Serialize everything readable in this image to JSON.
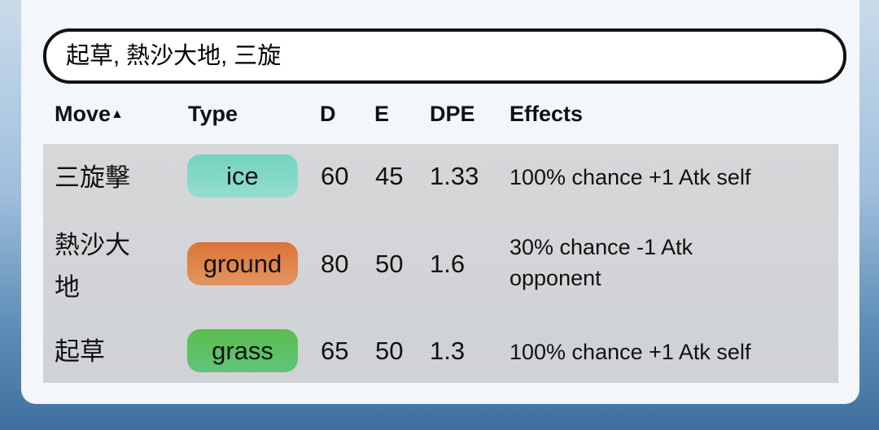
{
  "search": {
    "value": "起草, 熱沙大地, 三旋"
  },
  "columns": {
    "move": "Move",
    "sort_indicator": "▲",
    "type": "Type",
    "d": "D",
    "e": "E",
    "dpe": "DPE",
    "effects": "Effects"
  },
  "rows": [
    {
      "move": "三旋擊",
      "type": "ice",
      "type_color": "#7dd6c4",
      "d": "60",
      "e": "45",
      "dpe": "1.33",
      "effects": "100% chance +1 Atk self"
    },
    {
      "move": "熱沙大地",
      "type": "ground",
      "type_color": "#e07a3e",
      "d": "80",
      "e": "50",
      "dpe": "1.6",
      "effects": "30% chance -1 Atk opponent"
    },
    {
      "move": "起草",
      "type": "grass",
      "type_color": "#5cbf5a",
      "d": "65",
      "e": "50",
      "dpe": "1.3",
      "effects": "100% chance +1 Atk self"
    }
  ]
}
